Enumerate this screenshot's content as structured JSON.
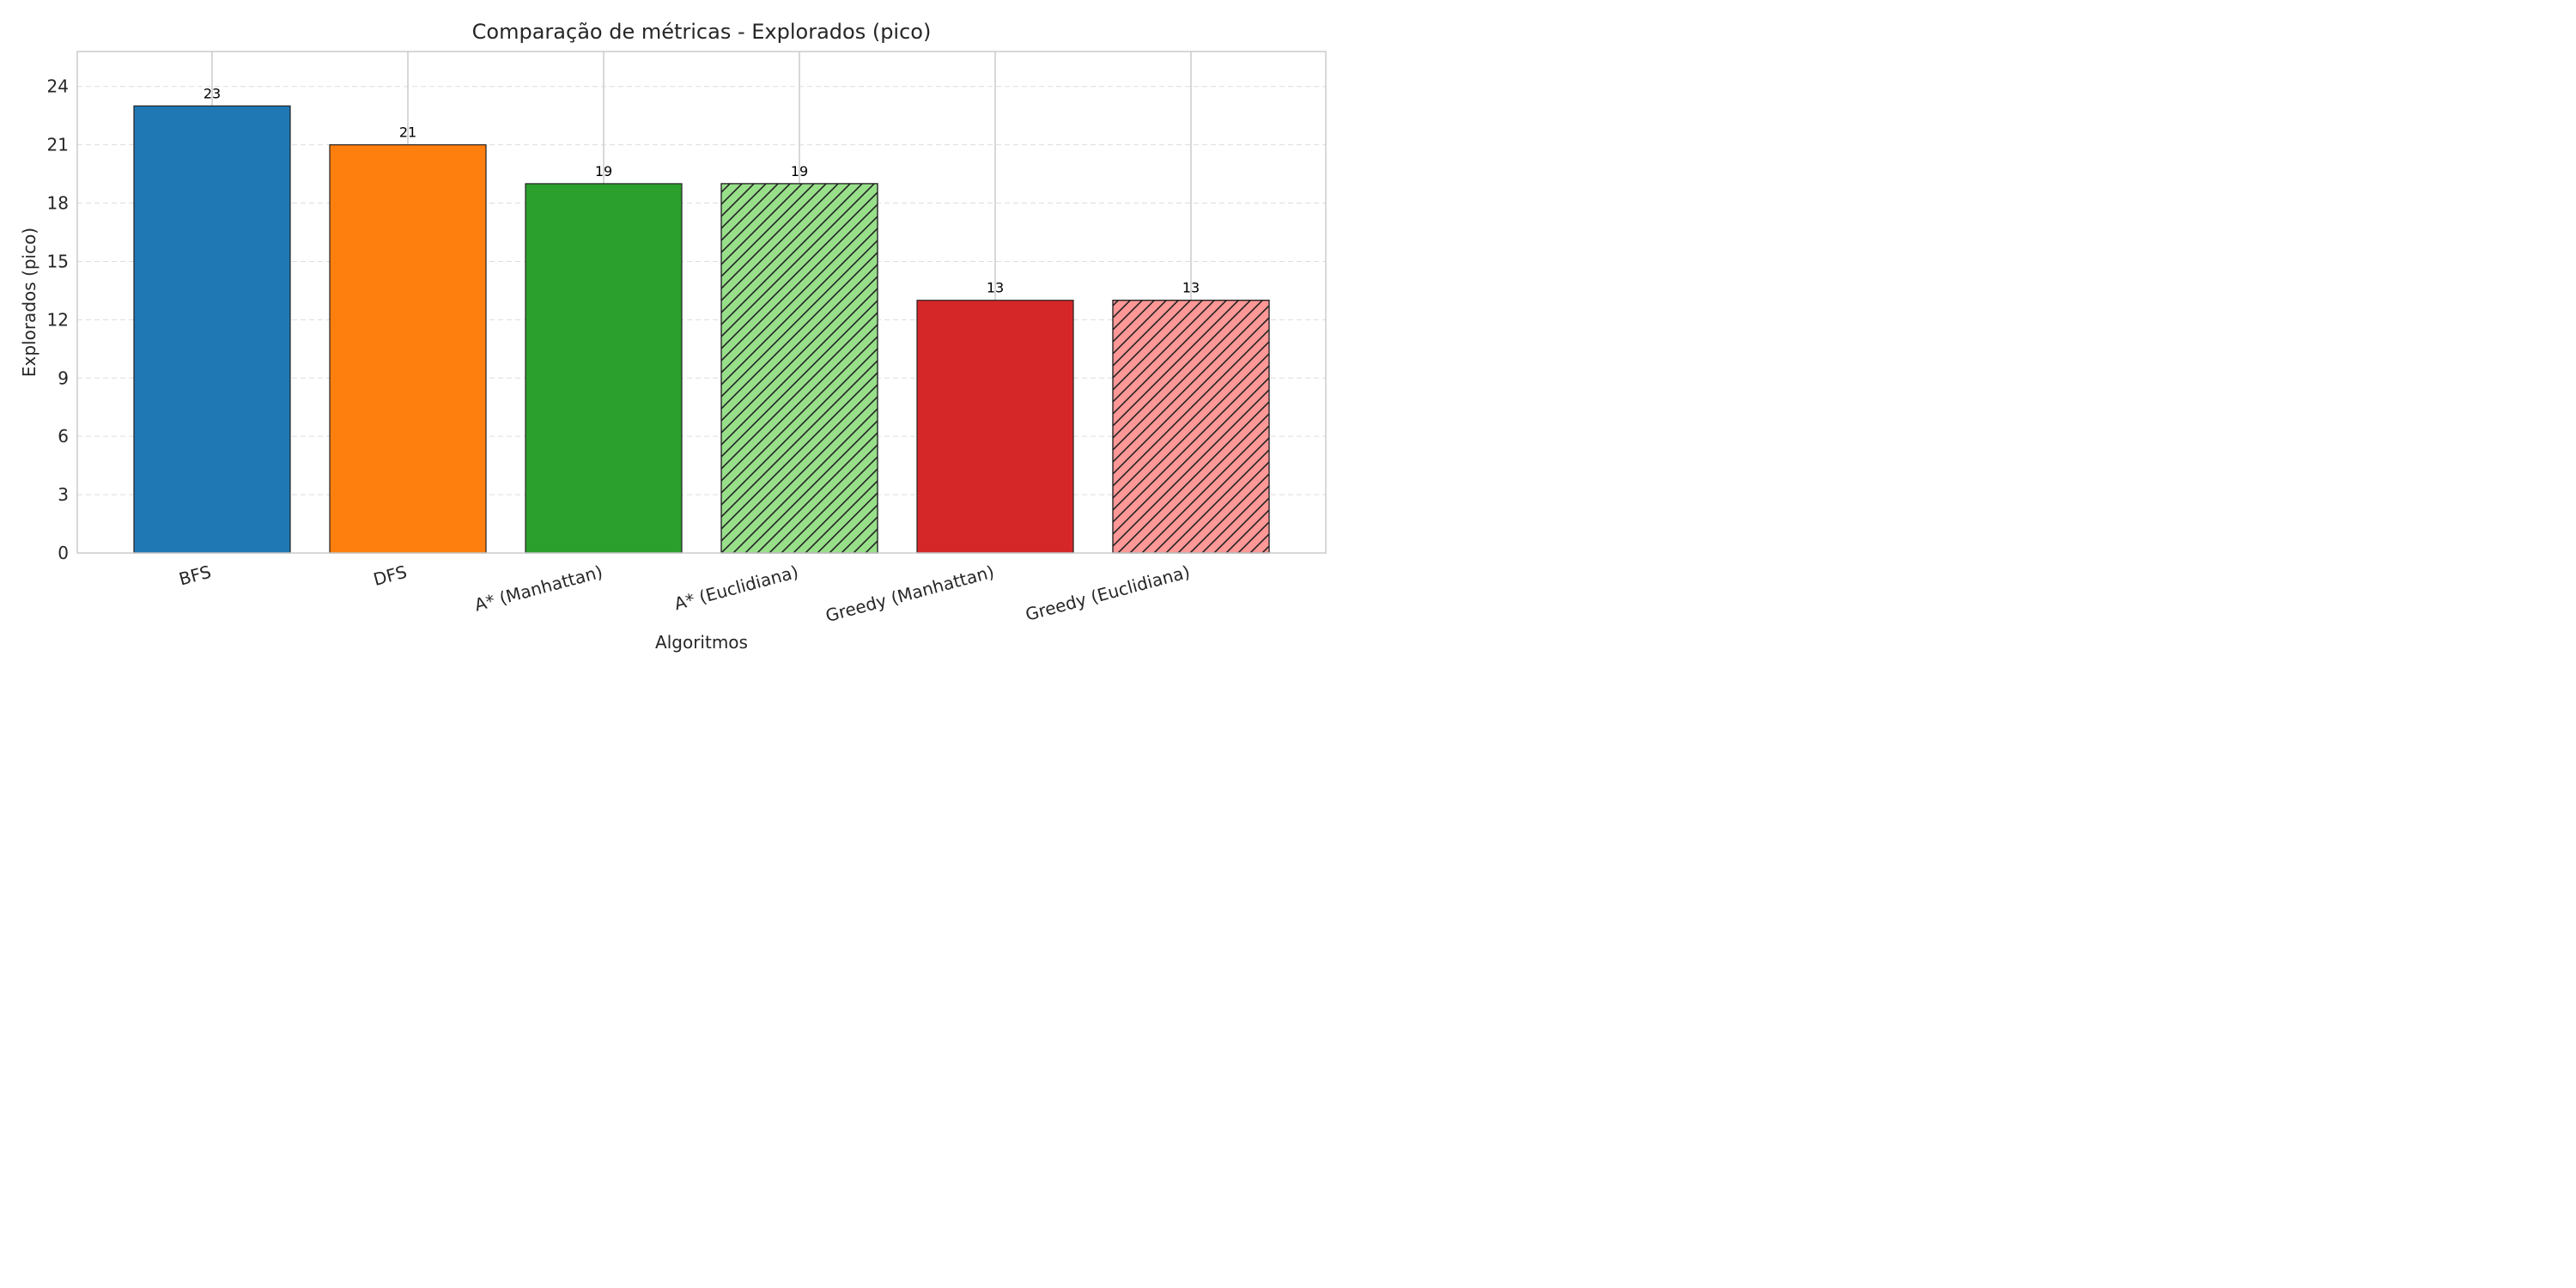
{
  "chart_data": {
    "type": "bar",
    "title": "Comparação de métricas - Explorados (pico)",
    "xlabel": "Algoritmos",
    "ylabel": "Explorados (pico)",
    "categories": [
      "BFS",
      "DFS",
      "A* (Manhattan)",
      "A* (Euclidiana)",
      "Greedy (Manhattan)",
      "Greedy (Euclidiana)"
    ],
    "values": [
      23,
      21,
      19,
      19,
      13,
      13
    ],
    "data_labels": [
      "23",
      "21",
      "19",
      "19",
      "13",
      "13"
    ],
    "colors": [
      "#1f77b4",
      "#ff7f0e",
      "#2ca02c",
      "#98df8a",
      "#d62728",
      "#ff9896"
    ],
    "hatched": [
      false,
      false,
      false,
      true,
      false,
      true
    ],
    "ylim": [
      0,
      25.8
    ],
    "yticks": [
      0,
      3,
      6,
      9,
      12,
      15,
      18,
      21,
      24
    ],
    "ytick_labels": [
      "0",
      "3",
      "6",
      "9",
      "12",
      "15",
      "18",
      "21",
      "24"
    ],
    "grid": true,
    "legend": "none"
  }
}
